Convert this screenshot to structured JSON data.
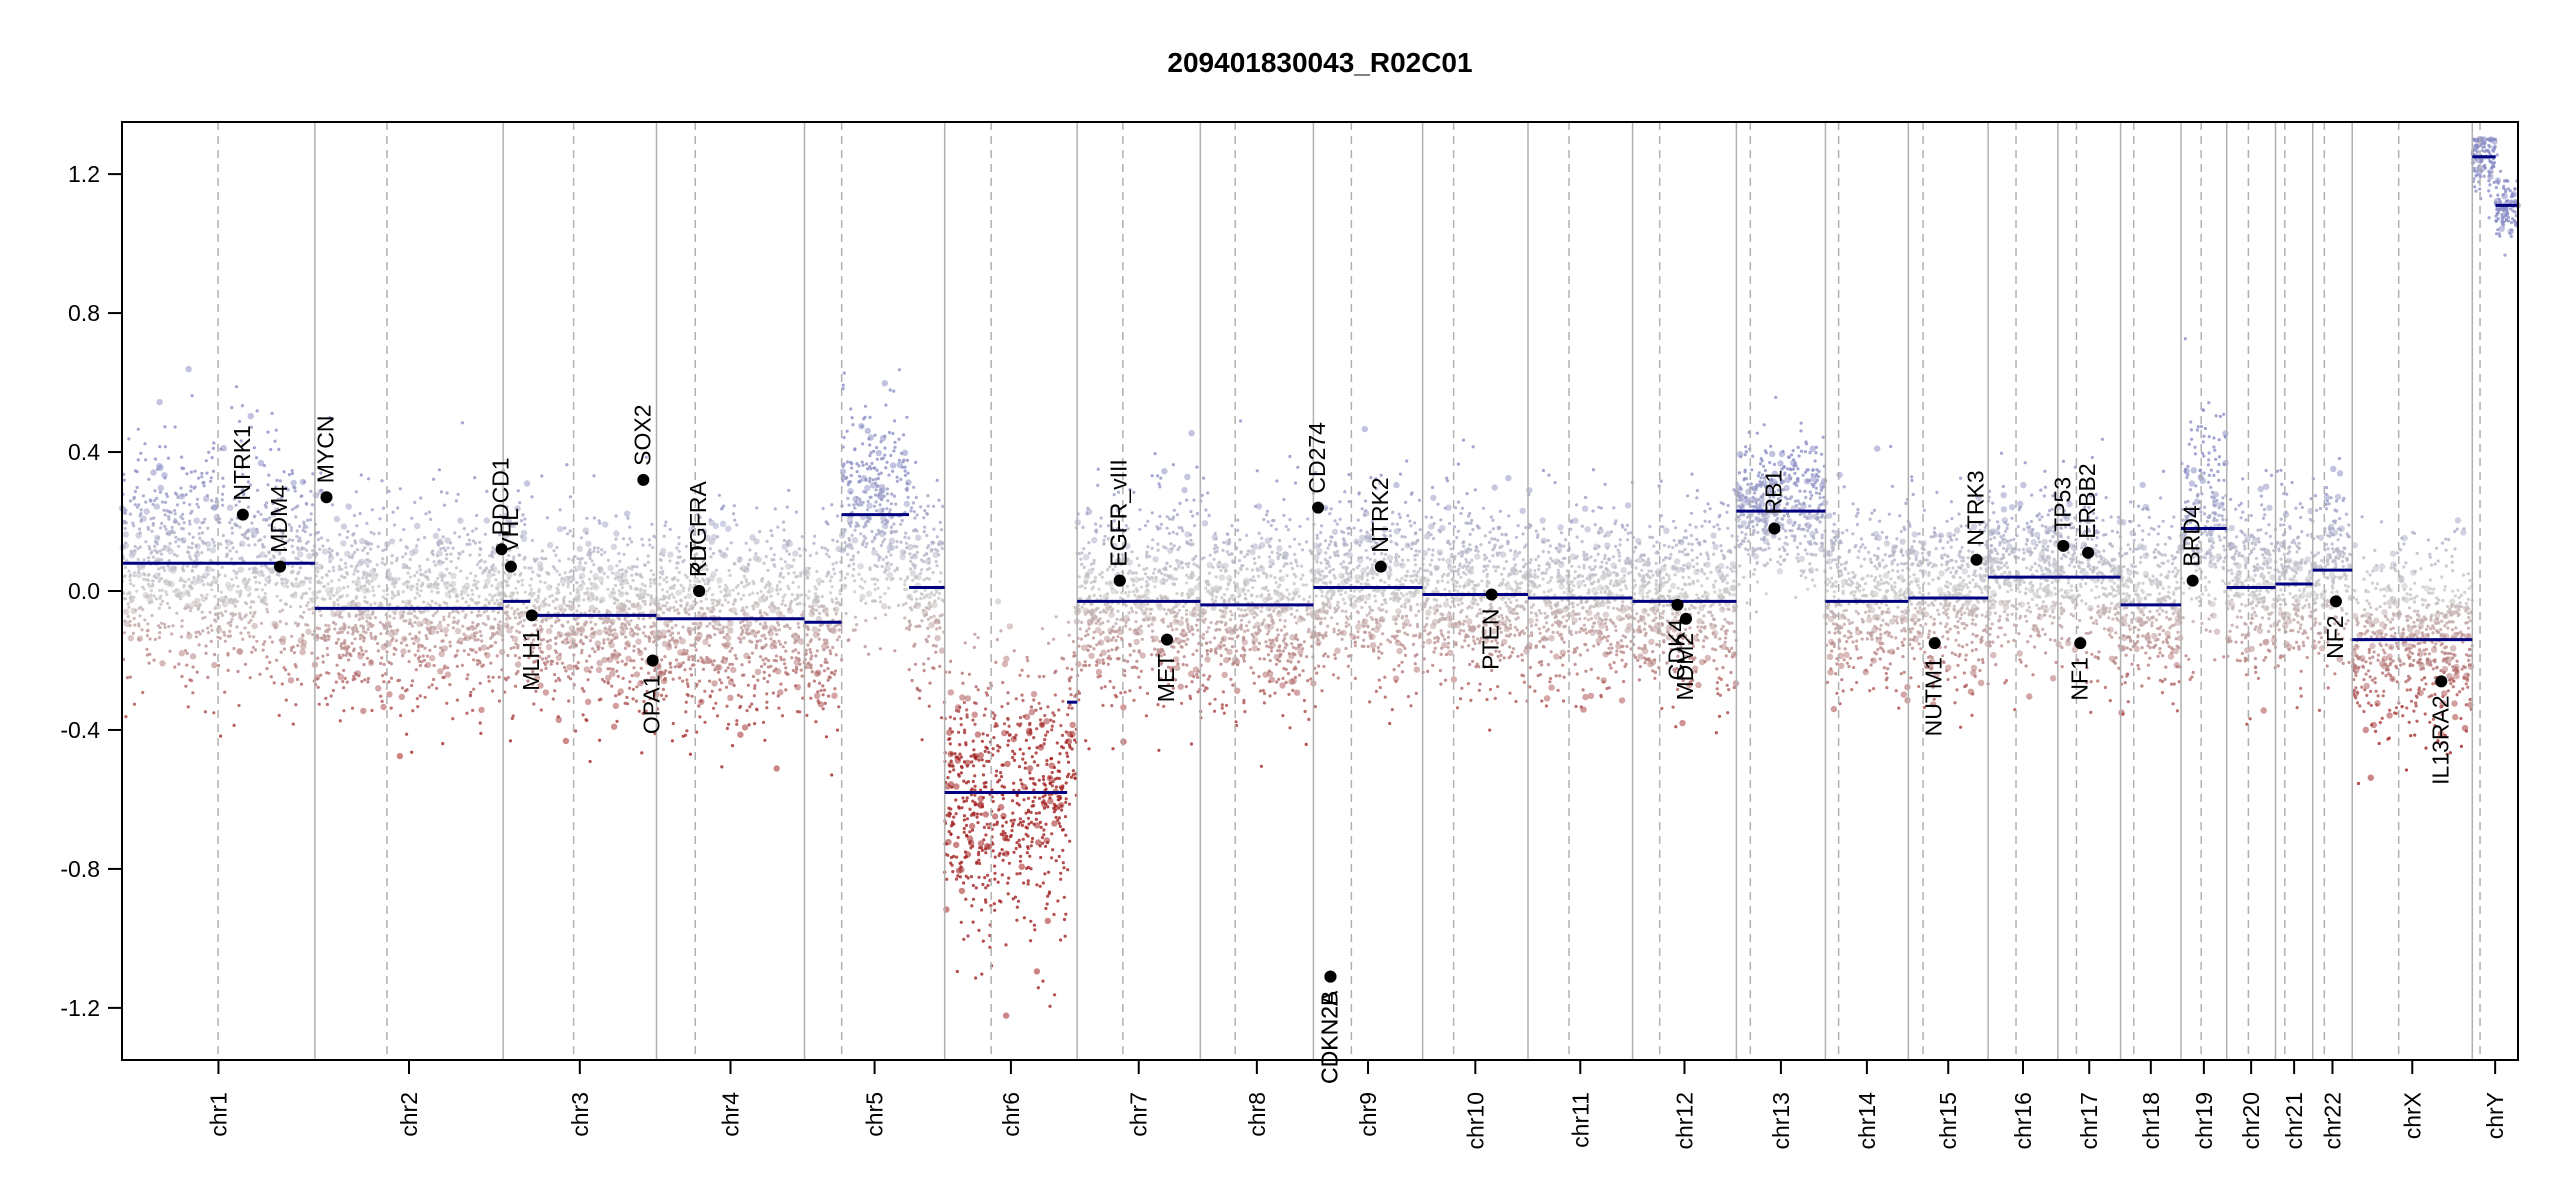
{
  "chart_data": {
    "type": "scatter",
    "title": "209401830043_R02C01",
    "xlabel": "",
    "ylabel": "",
    "ylim": [
      -1.35,
      1.35
    ],
    "yticks": [
      1.2,
      0.8,
      0.4,
      0.0,
      -0.4,
      -0.8,
      -1.2
    ],
    "ytick_labels": [
      "1.2",
      "0.8",
      "0.4",
      "0.0",
      "-0.4",
      "-0.8",
      "-1.2"
    ],
    "colors": {
      "gain": "#8c8fc7",
      "neutral": "#c9c9c9",
      "loss": "#a32020",
      "segment": "#000080",
      "gene_point": "#000000",
      "boundary": "#b0b0b0"
    },
    "chromosomes": [
      {
        "name": "chr1",
        "length": 249,
        "centromere": 124,
        "mean": 0.05,
        "spread": 0.16
      },
      {
        "name": "chr2",
        "length": 243,
        "centromere": 93,
        "mean": -0.05,
        "spread": 0.14
      },
      {
        "name": "chr3",
        "length": 198,
        "centromere": 91,
        "mean": -0.07,
        "spread": 0.14
      },
      {
        "name": "chr4",
        "length": 191,
        "centromere": 50,
        "mean": -0.08,
        "spread": 0.14
      },
      {
        "name": "chr5",
        "length": 181,
        "centromere": 48,
        "mean": 0.05,
        "spread": 0.15
      },
      {
        "name": "chr6",
        "length": 171,
        "centromere": 60,
        "mean": -0.4,
        "spread": 0.2
      },
      {
        "name": "chr7",
        "length": 159,
        "centromere": 59,
        "mean": -0.02,
        "spread": 0.14
      },
      {
        "name": "chr8",
        "length": 146,
        "centromere": 45,
        "mean": -0.04,
        "spread": 0.14
      },
      {
        "name": "chr9",
        "length": 141,
        "centromere": 49,
        "mean": 0.01,
        "spread": 0.13
      },
      {
        "name": "chr10",
        "length": 136,
        "centromere": 40,
        "mean": -0.01,
        "spread": 0.13
      },
      {
        "name": "chr11",
        "length": 135,
        "centromere": 53,
        "mean": -0.02,
        "spread": 0.13
      },
      {
        "name": "chr12",
        "length": 134,
        "centromere": 35,
        "mean": -0.03,
        "spread": 0.13
      },
      {
        "name": "chr13",
        "length": 115,
        "centromere": 18,
        "mean": 0.22,
        "spread": 0.1
      },
      {
        "name": "chr14",
        "length": 107,
        "centromere": 17,
        "mean": -0.03,
        "spread": 0.13
      },
      {
        "name": "chr15",
        "length": 103,
        "centromere": 19,
        "mean": -0.04,
        "spread": 0.13
      },
      {
        "name": "chr16",
        "length": 90,
        "centromere": 36,
        "mean": 0.04,
        "spread": 0.13
      },
      {
        "name": "chr17",
        "length": 81,
        "centromere": 24,
        "mean": 0.04,
        "spread": 0.13
      },
      {
        "name": "chr18",
        "length": 78,
        "centromere": 17,
        "mean": -0.04,
        "spread": 0.13
      },
      {
        "name": "chr19",
        "length": 59,
        "centromere": 26,
        "mean": 0.1,
        "spread": 0.16
      },
      {
        "name": "chr20",
        "length": 63,
        "centromere": 28,
        "mean": 0.01,
        "spread": 0.13
      },
      {
        "name": "chr21",
        "length": 48,
        "centromere": 12,
        "mean": 0.01,
        "spread": 0.13
      },
      {
        "name": "chr22",
        "length": 51,
        "centromere": 15,
        "mean": 0.05,
        "spread": 0.13
      },
      {
        "name": "chrX",
        "length": 155,
        "centromere": 60,
        "mean": -0.14,
        "spread": 0.13
      },
      {
        "name": "chrY",
        "length": 59,
        "centromere": 10,
        "mean": 1.1,
        "spread": 0.05
      }
    ],
    "segments": [
      {
        "chr": "chr1",
        "start": 0,
        "end": 249,
        "value": 0.08
      },
      {
        "chr": "chr2",
        "start": 0,
        "end": 243,
        "value": -0.05
      },
      {
        "chr": "chr3",
        "start": 0,
        "end": 35,
        "value": -0.03
      },
      {
        "chr": "chr3",
        "start": 35,
        "end": 198,
        "value": -0.07
      },
      {
        "chr": "chr4",
        "start": 0,
        "end": 191,
        "value": -0.08
      },
      {
        "chr": "chr5",
        "start": 0,
        "end": 48,
        "value": -0.09
      },
      {
        "chr": "chr5",
        "start": 48,
        "end": 135,
        "value": 0.22
      },
      {
        "chr": "chr5",
        "start": 135,
        "end": 181,
        "value": 0.01
      },
      {
        "chr": "chr6",
        "start": 0,
        "end": 158,
        "value": -0.58
      },
      {
        "chr": "chr6",
        "start": 158,
        "end": 171,
        "value": -0.32
      },
      {
        "chr": "chr7",
        "start": 0,
        "end": 159,
        "value": -0.03
      },
      {
        "chr": "chr8",
        "start": 0,
        "end": 146,
        "value": -0.04
      },
      {
        "chr": "chr9",
        "start": 0,
        "end": 141,
        "value": 0.01
      },
      {
        "chr": "chr10",
        "start": 0,
        "end": 136,
        "value": -0.01
      },
      {
        "chr": "chr11",
        "start": 0,
        "end": 135,
        "value": -0.02
      },
      {
        "chr": "chr12",
        "start": 0,
        "end": 134,
        "value": -0.03
      },
      {
        "chr": "chr13",
        "start": 0,
        "end": 115,
        "value": 0.23
      },
      {
        "chr": "chr14",
        "start": 0,
        "end": 107,
        "value": -0.03
      },
      {
        "chr": "chr15",
        "start": 0,
        "end": 103,
        "value": -0.02
      },
      {
        "chr": "chr16",
        "start": 0,
        "end": 90,
        "value": 0.04
      },
      {
        "chr": "chr17",
        "start": 0,
        "end": 81,
        "value": 0.04
      },
      {
        "chr": "chr18",
        "start": 0,
        "end": 78,
        "value": -0.04
      },
      {
        "chr": "chr19",
        "start": 0,
        "end": 59,
        "value": 0.18
      },
      {
        "chr": "chr20",
        "start": 0,
        "end": 63,
        "value": 0.01
      },
      {
        "chr": "chr21",
        "start": 0,
        "end": 48,
        "value": 0.02
      },
      {
        "chr": "chr22",
        "start": 0,
        "end": 51,
        "value": 0.06
      },
      {
        "chr": "chrX",
        "start": 0,
        "end": 155,
        "value": -0.14
      },
      {
        "chr": "chrY",
        "start": 0,
        "end": 30,
        "value": 1.25
      },
      {
        "chr": "chrY",
        "start": 30,
        "end": 59,
        "value": 1.11
      }
    ],
    "genes": [
      {
        "name": "NTRK1",
        "chr": "chr1",
        "pos": 156,
        "value": 0.22
      },
      {
        "name": "MDM4",
        "chr": "chr1",
        "pos": 204,
        "value": 0.07
      },
      {
        "name": "MYCN",
        "chr": "chr2",
        "pos": 15,
        "value": 0.27
      },
      {
        "name": "PDCD1",
        "chr": "chr2",
        "pos": 241,
        "value": 0.12
      },
      {
        "name": "VHL",
        "chr": "chr3",
        "pos": 10,
        "value": 0.07
      },
      {
        "name": "MLH1",
        "chr": "chr3",
        "pos": 37,
        "value": -0.07
      },
      {
        "name": "SOX2",
        "chr": "chr3",
        "pos": 181,
        "value": 0.32
      },
      {
        "name": "OPA1",
        "chr": "chr3",
        "pos": 193,
        "value": -0.2
      },
      {
        "name": "KIT",
        "chr": "chr4",
        "pos": 55,
        "value": 0.0
      },
      {
        "name": "PDGFRA",
        "chr": "chr4",
        "pos": 55,
        "value": 0.0
      },
      {
        "name": "EGFR_vIII",
        "chr": "chr7",
        "pos": 55,
        "value": 0.03
      },
      {
        "name": "EGFR",
        "chr": "chr7",
        "pos": 55,
        "value": 0.03
      },
      {
        "name": "MET",
        "chr": "chr7",
        "pos": 116,
        "value": -0.14
      },
      {
        "name": "CD274",
        "chr": "chr9",
        "pos": 6,
        "value": 0.24
      },
      {
        "name": "CDKN2A",
        "chr": "chr9",
        "pos": 22,
        "value": -1.11
      },
      {
        "name": "CDKN2B",
        "chr": "chr9",
        "pos": 22,
        "value": -1.11
      },
      {
        "name": "NTRK2",
        "chr": "chr9",
        "pos": 87,
        "value": 0.07
      },
      {
        "name": "PTEN",
        "chr": "chr10",
        "pos": 89,
        "value": -0.01
      },
      {
        "name": "CDK4",
        "chr": "chr12",
        "pos": 58,
        "value": -0.04
      },
      {
        "name": "MDM2",
        "chr": "chr12",
        "pos": 69,
        "value": -0.08
      },
      {
        "name": "RB1",
        "chr": "chr13",
        "pos": 49,
        "value": 0.18
      },
      {
        "name": "NUTM1",
        "chr": "chr15",
        "pos": 34,
        "value": -0.15
      },
      {
        "name": "NTRK3",
        "chr": "chr15",
        "pos": 88,
        "value": 0.09
      },
      {
        "name": "TP53",
        "chr": "chr17",
        "pos": 7,
        "value": 0.13
      },
      {
        "name": "NF1",
        "chr": "chr17",
        "pos": 29,
        "value": -0.15
      },
      {
        "name": "ERBB2",
        "chr": "chr17",
        "pos": 39,
        "value": 0.11
      },
      {
        "name": "BRD4",
        "chr": "chr19",
        "pos": 15,
        "value": 0.03
      },
      {
        "name": "NF2",
        "chr": "chr22",
        "pos": 30,
        "value": -0.03
      },
      {
        "name": "IL13RA2",
        "chr": "chrX",
        "pos": 115,
        "value": -0.26
      }
    ]
  }
}
